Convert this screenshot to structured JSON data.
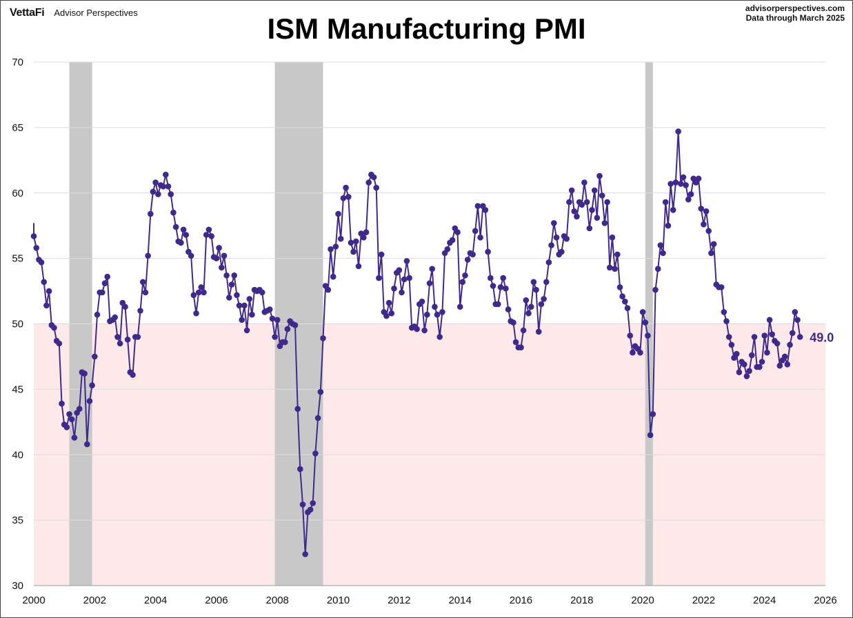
{
  "header": {
    "brand": "VettaFi",
    "brand_sub": "Advisor Perspectives",
    "title": "ISM Manufacturing PMI",
    "source_line1": "advisorperspectives.com",
    "source_line2": "Data through  March 2025"
  },
  "chart_data": {
    "type": "line",
    "title": "ISM Manufacturing PMI",
    "xlabel": "",
    "ylabel": "",
    "xlim": [
      2000,
      2026
    ],
    "ylim": [
      30,
      70
    ],
    "x_ticks": [
      "2000",
      "2002",
      "2004",
      "2006",
      "2008",
      "2010",
      "2012",
      "2014",
      "2016",
      "2018",
      "2020",
      "2022",
      "2024",
      "2026"
    ],
    "y_ticks": [
      "30",
      "35",
      "40",
      "45",
      "50",
      "55",
      "60",
      "65",
      "70"
    ],
    "threshold": 50,
    "last_value_label": "49.0",
    "colors": {
      "line": "#3f2a8c",
      "recession": "#c8c8c8",
      "contraction": "#fde9ea",
      "grid": "#dcdcdc"
    },
    "recessions": [
      {
        "start": "2001-03",
        "end": "2001-11"
      },
      {
        "start": "2007-12",
        "end": "2009-06"
      },
      {
        "start": "2020-02",
        "end": "2020-04"
      }
    ],
    "series": [
      {
        "start": "2000-01",
        "frequency": "monthly",
        "values": [
          56.7,
          55.8,
          54.9,
          54.7,
          53.2,
          51.4,
          52.5,
          49.9,
          49.7,
          48.7,
          48.5,
          43.9,
          42.3,
          42.1,
          43.1,
          42.7,
          41.3,
          43.2,
          43.5,
          46.3,
          46.2,
          40.8,
          44.1,
          45.3,
          47.5,
          50.7,
          52.4,
          52.4,
          53.1,
          53.6,
          50.2,
          50.3,
          50.5,
          49.0,
          48.5,
          51.6,
          51.3,
          48.8,
          46.3,
          46.1,
          49.0,
          49.0,
          51.0,
          53.2,
          52.4,
          55.2,
          58.4,
          60.1,
          60.8,
          59.9,
          60.6,
          60.5,
          61.4,
          60.5,
          59.9,
          58.5,
          57.4,
          56.3,
          56.2,
          57.2,
          56.8,
          55.5,
          55.2,
          52.2,
          50.8,
          52.4,
          52.8,
          52.4,
          56.8,
          57.2,
          56.7,
          55.1,
          55.0,
          55.8,
          54.3,
          55.2,
          53.7,
          52.0,
          53.0,
          53.7,
          52.2,
          51.4,
          50.3,
          51.4,
          49.5,
          51.9,
          50.7,
          52.6,
          52.5,
          52.6,
          52.4,
          50.9,
          51.0,
          51.1,
          50.4,
          49.0,
          50.3,
          48.3,
          48.6,
          48.6,
          49.6,
          50.2,
          50.0,
          49.9,
          43.5,
          38.9,
          36.2,
          32.4,
          35.6,
          35.8,
          36.3,
          40.1,
          42.8,
          44.8,
          48.9,
          52.9,
          52.6,
          55.7,
          53.6,
          55.9,
          58.4,
          56.5,
          59.6,
          60.4,
          59.7,
          56.2,
          55.5,
          56.3,
          54.4,
          56.9,
          56.6,
          57.0,
          60.8,
          61.4,
          61.2,
          60.4,
          53.5,
          55.3,
          50.9,
          50.6,
          51.6,
          50.8,
          52.7,
          53.9,
          54.1,
          52.4,
          53.4,
          54.8,
          53.5,
          49.7,
          49.8,
          49.6,
          51.5,
          51.7,
          49.5,
          50.7,
          53.1,
          54.2,
          51.3,
          50.7,
          49.0,
          50.9,
          55.4,
          55.7,
          56.2,
          56.4,
          57.3,
          57.0,
          51.3,
          53.2,
          53.7,
          54.9,
          55.4,
          55.3,
          57.1,
          59.0,
          56.6,
          59.0,
          58.7,
          55.5,
          53.5,
          52.9,
          51.5,
          51.5,
          52.8,
          53.5,
          52.7,
          51.1,
          50.2,
          50.1,
          48.6,
          48.2,
          48.2,
          49.5,
          51.8,
          50.8,
          51.3,
          53.2,
          52.6,
          49.4,
          51.5,
          51.9,
          53.2,
          54.7,
          56.0,
          57.7,
          56.6,
          55.3,
          55.5,
          56.7,
          56.5,
          59.3,
          60.2,
          58.6,
          58.2,
          59.3,
          59.1,
          60.8,
          59.3,
          57.3,
          58.7,
          60.2,
          58.1,
          61.3,
          59.8,
          57.7,
          59.3,
          54.3,
          56.6,
          54.2,
          55.3,
          52.8,
          52.1,
          51.7,
          51.2,
          49.1,
          47.8,
          48.3,
          48.1,
          47.8,
          50.9,
          50.1,
          49.1,
          41.5,
          43.1,
          52.6,
          54.2,
          56.0,
          55.4,
          59.3,
          57.5,
          60.7,
          58.7,
          60.8,
          64.7,
          60.7,
          61.2,
          60.6,
          59.5,
          59.9,
          61.1,
          60.8,
          61.1,
          58.8,
          57.6,
          58.6,
          57.1,
          55.4,
          56.1,
          53.0,
          52.8,
          52.8,
          50.9,
          50.2,
          49.0,
          48.4,
          47.4,
          47.7,
          46.3,
          47.1,
          46.9,
          46.0,
          46.4,
          47.6,
          49.0,
          46.7,
          46.7,
          47.1,
          49.1,
          47.8,
          50.3,
          49.2,
          48.7,
          48.5,
          46.8,
          47.2,
          47.5,
          46.9,
          48.4,
          49.3,
          50.9,
          50.3,
          49.0
        ]
      }
    ]
  }
}
